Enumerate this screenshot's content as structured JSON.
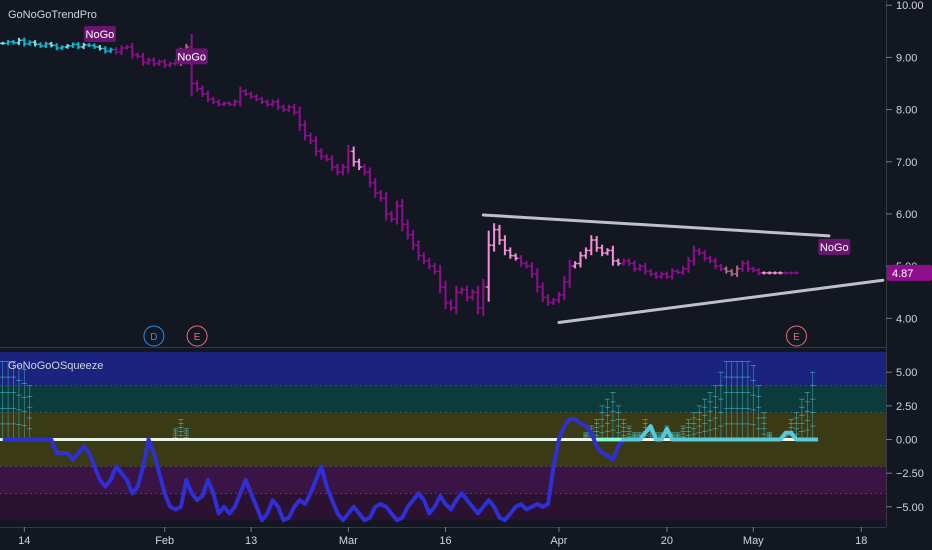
{
  "chart_data": [
    {
      "type": "ohlc",
      "title": "GoNoGoTrendPro",
      "price_axis": {
        "ticks": [
          4.0,
          5.0,
          6.0,
          7.0,
          8.0,
          9.0,
          10.0
        ],
        "tick_labels": [
          "4.00",
          "5.00",
          "6.00",
          "7.00",
          "8.00",
          "9.00",
          "10.00"
        ],
        "ylim": [
          3.45,
          10.1
        ]
      },
      "current_price_label": "4.87",
      "current_price": 4.87,
      "time_axis": {
        "labels": [
          "14",
          "Feb",
          "13",
          "Mar",
          "16",
          "Apr",
          "20",
          "May",
          "18"
        ],
        "label_bar_index": [
          4,
          30,
          46,
          64,
          82,
          103,
          123,
          139,
          159
        ]
      },
      "bar_count": 148,
      "colors": {
        "go_strong": "#00bcd4",
        "go_weak": "#80deea",
        "nogo_strong": "#8e0f8e",
        "nogo_weak": "#f48fd8",
        "neutral": "#b06a7e"
      },
      "series": [
        {
          "name": "close",
          "values": [
            9.27,
            9.3,
            9.28,
            9.33,
            9.26,
            9.29,
            9.25,
            9.22,
            9.26,
            9.23,
            9.18,
            9.2,
            9.22,
            9.25,
            9.2,
            9.24,
            9.23,
            9.2,
            9.17,
            9.12,
            9.15,
            9.1,
            9.18,
            9.2,
            9.05,
            9.02,
            8.9,
            8.95,
            8.88,
            8.92,
            8.85,
            8.88,
            8.92,
            9.1,
            9.2,
            8.5,
            8.4,
            8.3,
            8.2,
            8.15,
            8.1,
            8.12,
            8.1,
            8.15,
            8.35,
            8.3,
            8.25,
            8.2,
            8.15,
            8.1,
            8.15,
            8.05,
            8.0,
            8.05,
            7.95,
            7.7,
            7.5,
            7.4,
            7.2,
            7.1,
            7.05,
            6.9,
            6.8,
            6.9,
            7.2,
            7.0,
            6.9,
            6.8,
            6.6,
            6.4,
            6.3,
            6.0,
            5.9,
            6.15,
            5.8,
            5.6,
            5.4,
            5.2,
            5.1,
            5.0,
            4.9,
            4.6,
            4.3,
            4.2,
            4.5,
            4.55,
            4.4,
            4.5,
            4.2,
            4.6,
            5.4,
            5.7,
            5.5,
            5.3,
            5.2,
            5.15,
            5.05,
            5.0,
            4.85,
            4.6,
            4.4,
            4.3,
            4.35,
            4.45,
            4.7,
            5.0,
            5.05,
            5.2,
            5.3,
            5.5,
            5.35,
            5.25,
            5.3,
            5.1,
            5.05,
            5.1,
            5.05,
            4.95,
            5.0,
            4.9,
            4.85,
            4.8,
            4.85,
            4.8,
            4.9,
            4.88,
            4.95,
            5.1,
            5.3,
            5.25,
            5.15,
            5.1,
            5.0,
            4.95,
            4.9,
            4.85,
            4.95,
            5.05,
            4.95,
            4.92,
            4.87,
            4.87,
            4.87,
            4.87,
            4.87,
            4.87,
            4.87,
            4.87
          ]
        }
      ],
      "patterns": [
        {
          "name": "upper-trendline",
          "from": {
            "bar": 89,
            "price": 5.98
          },
          "to": {
            "bar": 153,
            "price": 5.58
          }
        },
        {
          "name": "lower-trendline",
          "from": {
            "bar": 103,
            "price": 3.92
          },
          "to": {
            "bar": 163,
            "price": 4.73
          }
        }
      ],
      "markers": [
        {
          "text": "NoGo",
          "bar": 18,
          "price": 9.43
        },
        {
          "text": "NoGo",
          "bar": 35,
          "price": 9.0
        },
        {
          "text": "NoGo",
          "bar": 154,
          "price": 5.35
        }
      ],
      "event_badges": [
        {
          "text": "D",
          "bar": 28,
          "color": "#2196f3"
        },
        {
          "text": "E",
          "bar": 36,
          "color": "#e57373"
        },
        {
          "text": "E",
          "bar": 147,
          "color": "#e57373"
        }
      ]
    },
    {
      "type": "oscillator",
      "title": "GoNoGoOSqueeze",
      "axis": {
        "ticks": [
          5,
          2.5,
          0,
          -2.5,
          -5
        ],
        "tick_labels": [
          "5.00",
          "2.50",
          "0.00",
          "−2.50",
          "−5.00"
        ],
        "ylim": [
          -6.5,
          6.8
        ]
      },
      "bands": [
        {
          "from": 4,
          "to": 6.5,
          "color": "#1a237e"
        },
        {
          "from": 2,
          "to": 4,
          "color": "#0d3b3b"
        },
        {
          "from": -2,
          "to": 2,
          "color": "#3a3a14"
        },
        {
          "from": -4,
          "to": -2,
          "color": "#3a1445"
        },
        {
          "from": -6,
          "to": -4,
          "color": "#2b1230"
        }
      ],
      "series": [
        {
          "name": "oscillator",
          "values": [
            0,
            0,
            0,
            0,
            0,
            0,
            0,
            0,
            0,
            0,
            -1,
            -1,
            -1,
            -1.5,
            -1,
            -0.5,
            -1,
            -2,
            -3,
            -3.5,
            -3,
            -2,
            -2.5,
            -3,
            -4,
            -3.5,
            -2,
            0,
            -1,
            -2.5,
            -4,
            -5,
            -5.2,
            -5,
            -3,
            -4,
            -4.5,
            -4.2,
            -3,
            -4,
            -5.5,
            -5,
            -5.5,
            -5,
            -4,
            -3,
            -4,
            -5,
            -6,
            -5.5,
            -4.5,
            -5,
            -6,
            -5.8,
            -5,
            -4.5,
            -4.8,
            -4,
            -3,
            -2,
            -3.5,
            -4.5,
            -5.5,
            -6,
            -5.5,
            -5,
            -5.5,
            -6,
            -5.8,
            -5,
            -4.8,
            -5,
            -5.5,
            -6,
            -5.8,
            -5,
            -4.5,
            -4,
            -4.5,
            -5.5,
            -5,
            -4.2,
            -4.8,
            -5.2,
            -4.5,
            -4,
            -4.5,
            -5,
            -5.5,
            -5,
            -4.5,
            -5,
            -5.8,
            -6,
            -5.5,
            -5,
            -4.8,
            -5.2,
            -5,
            -4.8,
            -5,
            -4.8,
            -2,
            0,
            1,
            1.5,
            1.5,
            1.2,
            1,
            0.5,
            -0.5,
            -1,
            -1.2,
            -1.5,
            -0.5,
            0,
            0,
            0,
            0,
            0.5,
            1,
            0,
            0,
            0.8,
            0,
            0,
            0,
            0,
            0,
            0,
            0,
            0,
            0,
            0,
            0,
            0,
            0,
            0,
            0,
            0,
            0,
            0,
            0,
            0,
            0,
            0.5,
            0.5,
            0,
            0,
            0,
            0,
            0
          ]
        },
        {
          "name": "go-squeeze",
          "values": [
            5.8,
            5.8,
            5.8,
            5.5,
            5.2,
            4,
            0,
            0,
            0,
            0,
            0,
            0,
            0,
            0,
            0,
            0,
            0,
            0,
            0,
            0,
            0,
            0,
            0,
            0,
            0,
            0,
            0,
            0,
            0,
            0,
            0,
            0,
            0.8,
            1.5,
            0.8,
            0,
            0,
            0,
            0,
            0,
            0,
            0,
            0,
            0,
            0,
            0,
            0,
            0,
            0,
            0,
            0,
            0,
            0,
            0,
            0,
            0,
            0,
            0,
            0,
            0,
            0,
            0,
            0,
            0,
            0,
            0,
            0,
            0,
            0,
            0,
            0,
            0,
            0,
            0,
            0,
            0,
            0,
            0,
            0,
            0,
            0,
            0,
            0,
            0,
            0,
            0,
            0,
            0,
            0,
            0,
            0,
            0,
            0,
            0,
            0,
            0,
            0,
            0,
            0,
            0,
            0,
            0,
            0,
            0,
            0,
            0,
            0,
            0,
            0.5,
            1,
            1.5,
            2.5,
            3,
            3.5,
            2.5,
            1.5,
            1,
            0.5,
            0.5,
            1.5,
            1,
            0.5,
            0.5,
            1,
            0.5,
            0.5,
            1,
            1.5,
            2,
            2.5,
            3,
            3.5,
            4,
            5,
            5.8,
            5.8,
            5.8,
            5.8,
            5.8,
            5.5,
            4,
            2,
            0.5,
            0,
            0,
            0.5,
            1.5,
            2,
            3,
            3.5,
            5
          ]
        }
      ]
    }
  ]
}
